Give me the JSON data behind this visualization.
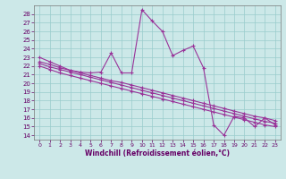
{
  "xlabel": "Windchill (Refroidissement éolien,°C)",
  "xlim": [
    -0.5,
    23.5
  ],
  "ylim": [
    13.5,
    29.0
  ],
  "yticks": [
    14,
    15,
    16,
    17,
    18,
    19,
    20,
    21,
    22,
    23,
    24,
    25,
    26,
    27,
    28
  ],
  "xticks": [
    0,
    1,
    2,
    3,
    4,
    5,
    6,
    7,
    8,
    9,
    10,
    11,
    12,
    13,
    14,
    15,
    16,
    17,
    18,
    19,
    20,
    21,
    22,
    23
  ],
  "line_color": "#993399",
  "bg_color": "#cce8e8",
  "grid_color": "#99cccc",
  "curve": [
    23.0,
    22.5,
    22.0,
    21.5,
    21.3,
    21.2,
    21.3,
    23.5,
    21.2,
    21.2,
    28.5,
    27.2,
    26.0,
    23.2,
    23.8,
    24.3,
    21.8,
    15.2,
    14.0,
    16.2,
    16.0,
    15.0,
    16.0,
    15.2
  ],
  "trend1": [
    22.5,
    22.2,
    21.8,
    21.5,
    21.2,
    20.9,
    20.6,
    20.3,
    20.1,
    19.8,
    19.5,
    19.2,
    18.9,
    18.6,
    18.3,
    18.0,
    17.7,
    17.4,
    17.1,
    16.8,
    16.5,
    16.2,
    16.0,
    15.7
  ],
  "trend2": [
    22.3,
    21.9,
    21.6,
    21.3,
    21.0,
    20.7,
    20.4,
    20.1,
    19.8,
    19.5,
    19.2,
    18.9,
    18.6,
    18.3,
    18.0,
    17.7,
    17.4,
    17.1,
    16.8,
    16.5,
    16.2,
    15.9,
    15.6,
    15.4
  ],
  "trend3": [
    22.0,
    21.6,
    21.2,
    20.9,
    20.6,
    20.3,
    20.0,
    19.7,
    19.4,
    19.1,
    18.8,
    18.5,
    18.2,
    17.9,
    17.6,
    17.3,
    17.0,
    16.7,
    16.4,
    16.1,
    15.8,
    15.5,
    15.2,
    15.0
  ]
}
